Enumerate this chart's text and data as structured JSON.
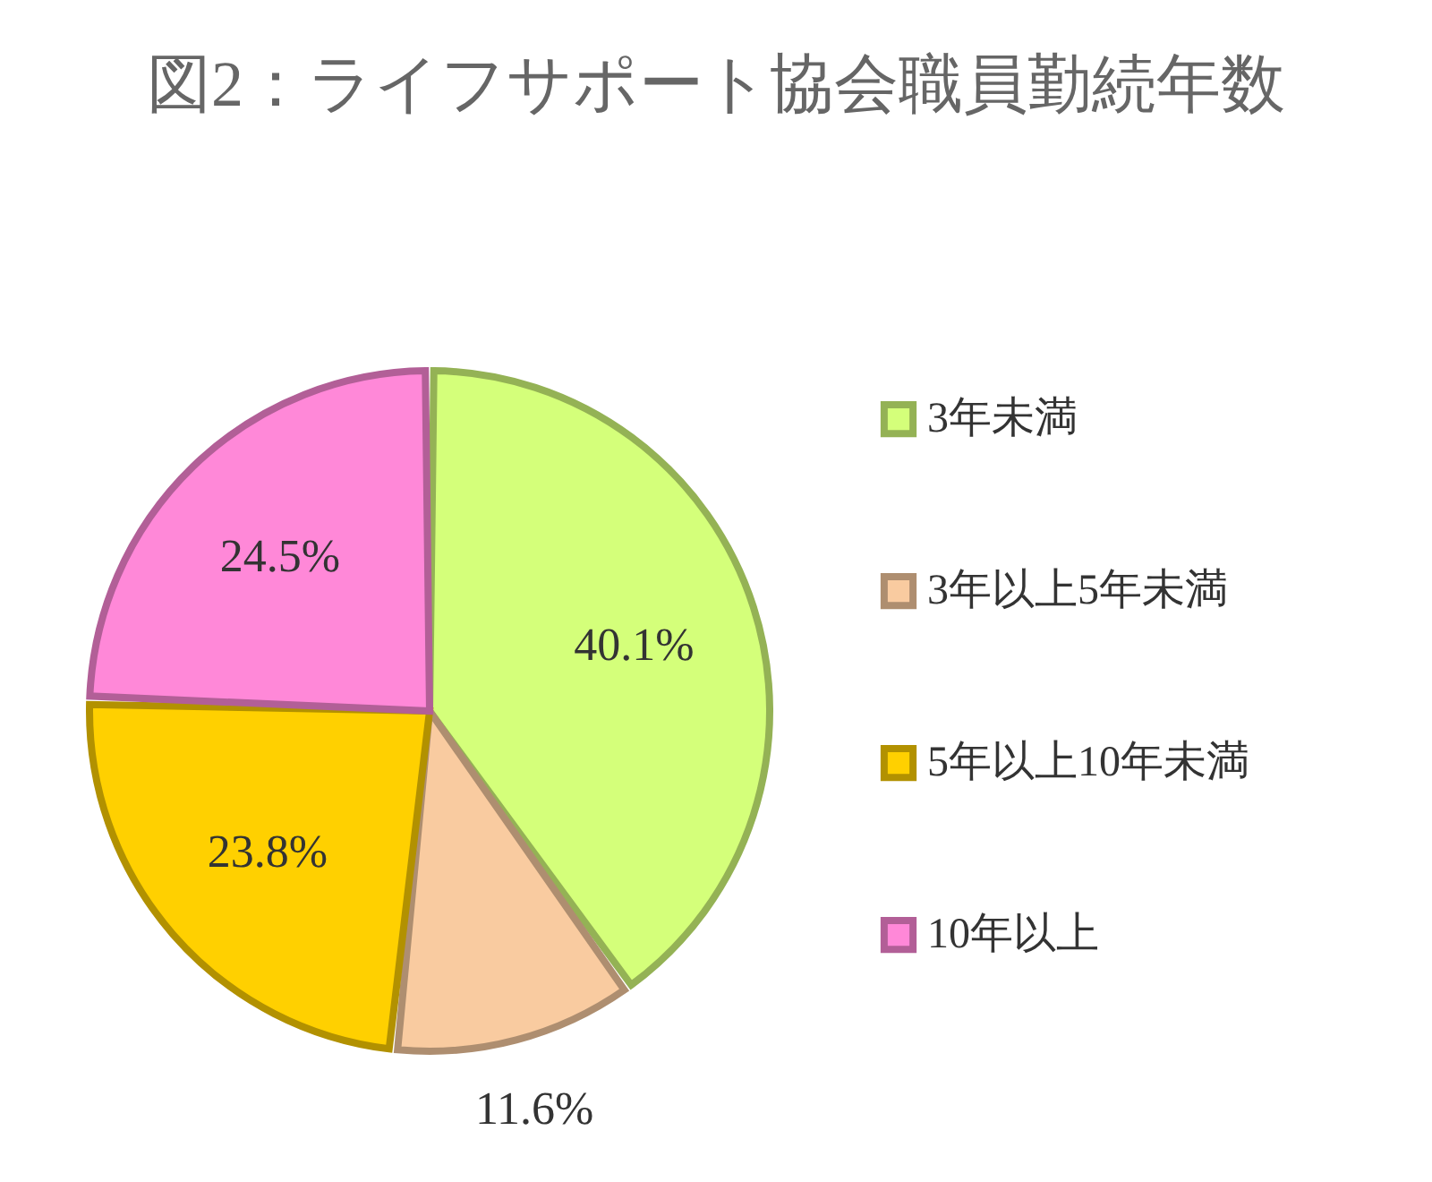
{
  "chart_data": {
    "type": "pie",
    "title": "図2：ライフサポート協会職員勤続年数",
    "categories": [
      "3年未満",
      "3年以上5年未満",
      "5年以上10年未満",
      "10年以上"
    ],
    "values": [
      40.1,
      11.6,
      23.8,
      24.5
    ],
    "colors": [
      "#d4ff7a",
      "#f9cba0",
      "#ffd000",
      "#ff88d8"
    ],
    "value_labels": [
      "40.1%",
      "11.6%",
      "23.8%",
      "24.5%"
    ],
    "legend": "right"
  }
}
